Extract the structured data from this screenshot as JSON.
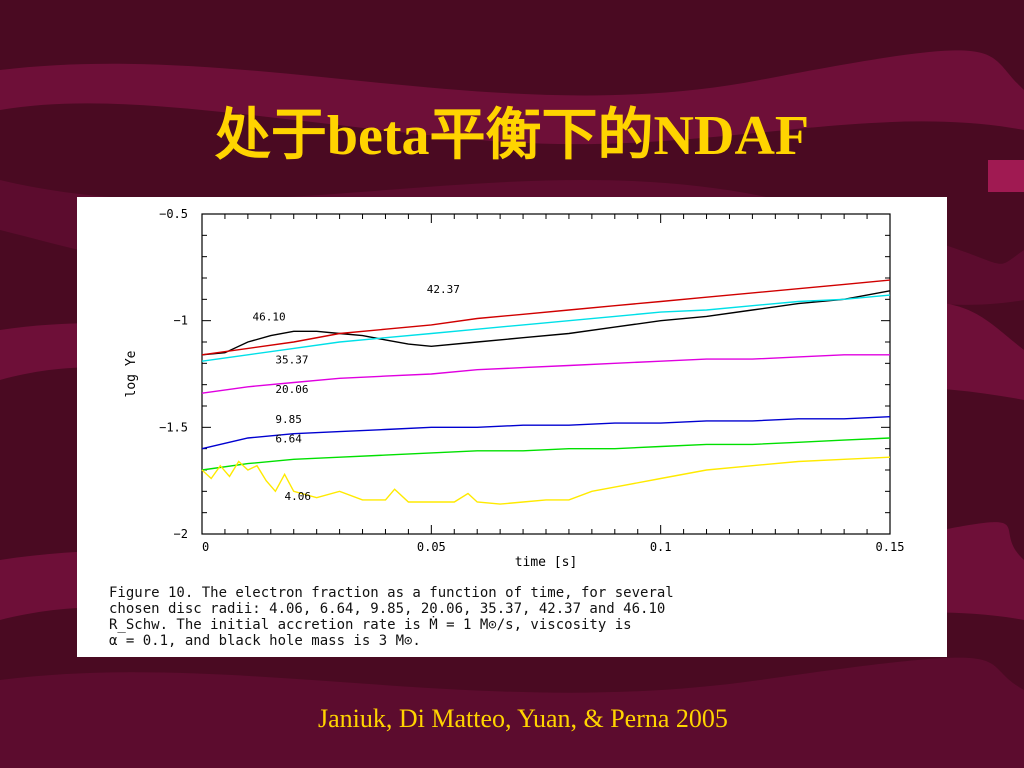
{
  "slide": {
    "title": "处于beta平衡下的NDAF",
    "citation": "Janiuk, Di Matteo, Yuan, & Perna 2005",
    "colors": {
      "background": "#4a0a22",
      "wave": "#6e0f38",
      "title": "#ffd400",
      "citation": "#ffd400"
    }
  },
  "caption_lines": [
    "Figure 10. The electron fraction as a function of time, for several",
    "chosen disc radii: 4.06, 6.64, 9.85, 20.06, 35.37, 42.37 and 46.10",
    "R_Schw. The initial accretion rate is Ṁ = 1 M⊙/s, viscosity is",
    "α = 0.1, and black hole mass is 3 M⊙."
  ],
  "chart_data": {
    "type": "line",
    "title": "",
    "xlabel": "time [s]",
    "ylabel": "log Ye",
    "xlim": [
      0,
      0.15
    ],
    "ylim": [
      -2,
      -0.5
    ],
    "xticks": [
      {
        "value": 0,
        "label": "0"
      },
      {
        "value": 0.05,
        "label": "0.05"
      },
      {
        "value": 0.1,
        "label": "0.1"
      },
      {
        "value": 0.15,
        "label": "0.15"
      }
    ],
    "yticks": [
      {
        "value": -0.5,
        "label": "−0.5"
      },
      {
        "value": -1,
        "label": "−1"
      },
      {
        "value": -1.5,
        "label": "−1.5"
      },
      {
        "value": -2,
        "label": "−2"
      }
    ],
    "series": [
      {
        "name": "46.10",
        "color": "#000000",
        "label_at": [
          0.011,
          -1.0
        ],
        "x": [
          0,
          0.005,
          0.01,
          0.015,
          0.02,
          0.025,
          0.03,
          0.035,
          0.04,
          0.045,
          0.05,
          0.06,
          0.07,
          0.08,
          0.09,
          0.1,
          0.11,
          0.12,
          0.13,
          0.14,
          0.15
        ],
        "y": [
          -1.16,
          -1.15,
          -1.1,
          -1.07,
          -1.05,
          -1.05,
          -1.06,
          -1.07,
          -1.09,
          -1.11,
          -1.12,
          -1.1,
          -1.08,
          -1.06,
          -1.03,
          -1.0,
          -0.98,
          -0.95,
          -0.92,
          -0.9,
          -0.86
        ]
      },
      {
        "name": "42.37",
        "color": "#d00000",
        "label_at": [
          0.049,
          -0.87
        ],
        "x": [
          0,
          0.01,
          0.02,
          0.03,
          0.04,
          0.05,
          0.06,
          0.07,
          0.08,
          0.09,
          0.1,
          0.11,
          0.12,
          0.13,
          0.14,
          0.15
        ],
        "y": [
          -1.16,
          -1.13,
          -1.1,
          -1.06,
          -1.04,
          -1.02,
          -0.99,
          -0.97,
          -0.95,
          -0.93,
          -0.91,
          -0.89,
          -0.87,
          -0.85,
          -0.83,
          -0.81
        ]
      },
      {
        "name": "35.37",
        "color": "#00e0e8",
        "label_at": [
          0.016,
          -1.2
        ],
        "x": [
          0,
          0.01,
          0.02,
          0.03,
          0.04,
          0.05,
          0.06,
          0.07,
          0.08,
          0.09,
          0.1,
          0.11,
          0.12,
          0.13,
          0.14,
          0.15
        ],
        "y": [
          -1.19,
          -1.16,
          -1.13,
          -1.1,
          -1.08,
          -1.06,
          -1.04,
          -1.02,
          -1.0,
          -0.98,
          -0.96,
          -0.95,
          -0.93,
          -0.91,
          -0.9,
          -0.88
        ]
      },
      {
        "name": "20.06",
        "color": "#e000e0",
        "label_at": [
          0.016,
          -1.34
        ],
        "x": [
          0,
          0.01,
          0.02,
          0.03,
          0.04,
          0.05,
          0.06,
          0.07,
          0.08,
          0.09,
          0.1,
          0.11,
          0.12,
          0.13,
          0.14,
          0.15
        ],
        "y": [
          -1.34,
          -1.31,
          -1.29,
          -1.27,
          -1.26,
          -1.25,
          -1.23,
          -1.22,
          -1.21,
          -1.2,
          -1.19,
          -1.18,
          -1.18,
          -1.17,
          -1.16,
          -1.16
        ]
      },
      {
        "name": "9.85",
        "color": "#0000d0",
        "label_at": [
          0.016,
          -1.48
        ],
        "x": [
          0,
          0.01,
          0.02,
          0.03,
          0.04,
          0.05,
          0.06,
          0.07,
          0.08,
          0.09,
          0.1,
          0.11,
          0.12,
          0.13,
          0.14,
          0.15
        ],
        "y": [
          -1.6,
          -1.55,
          -1.53,
          -1.52,
          -1.51,
          -1.5,
          -1.5,
          -1.49,
          -1.49,
          -1.48,
          -1.48,
          -1.47,
          -1.47,
          -1.46,
          -1.46,
          -1.45
        ]
      },
      {
        "name": "6.64",
        "color": "#00e000",
        "label_at": [
          0.016,
          -1.57
        ],
        "x": [
          0,
          0.01,
          0.02,
          0.03,
          0.04,
          0.05,
          0.06,
          0.07,
          0.08,
          0.09,
          0.1,
          0.11,
          0.12,
          0.13,
          0.14,
          0.15
        ],
        "y": [
          -1.7,
          -1.67,
          -1.65,
          -1.64,
          -1.63,
          -1.62,
          -1.61,
          -1.61,
          -1.6,
          -1.6,
          -1.59,
          -1.58,
          -1.58,
          -1.57,
          -1.56,
          -1.55
        ]
      },
      {
        "name": "4.06",
        "color": "#ffea00",
        "label_at": [
          0.018,
          -1.84
        ],
        "x": [
          0,
          0.002,
          0.004,
          0.006,
          0.008,
          0.01,
          0.012,
          0.014,
          0.016,
          0.018,
          0.02,
          0.025,
          0.03,
          0.035,
          0.04,
          0.042,
          0.045,
          0.05,
          0.055,
          0.058,
          0.06,
          0.065,
          0.07,
          0.075,
          0.08,
          0.085,
          0.09,
          0.1,
          0.11,
          0.12,
          0.13,
          0.14,
          0.15
        ],
        "y": [
          -1.7,
          -1.74,
          -1.68,
          -1.73,
          -1.66,
          -1.7,
          -1.68,
          -1.75,
          -1.8,
          -1.72,
          -1.8,
          -1.83,
          -1.8,
          -1.84,
          -1.84,
          -1.79,
          -1.85,
          -1.85,
          -1.85,
          -1.81,
          -1.85,
          -1.86,
          -1.85,
          -1.84,
          -1.84,
          -1.8,
          -1.78,
          -1.74,
          -1.7,
          -1.68,
          -1.66,
          -1.65,
          -1.64
        ]
      }
    ]
  }
}
